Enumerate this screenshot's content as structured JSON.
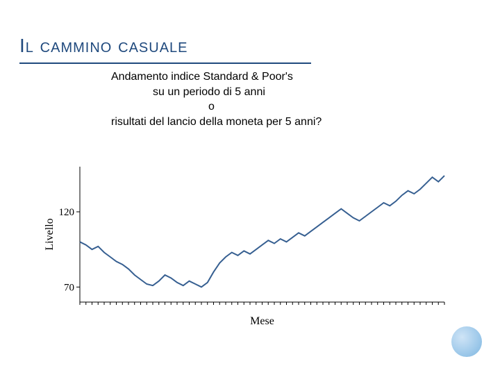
{
  "title": "Il cammino casuale",
  "subtitle": {
    "line1": "Andamento indice Standard & Poor's",
    "line2": "su un periodo di 5 anni",
    "line3": "o",
    "line4": "risultati del lancio della  moneta per 5 anni?"
  },
  "chart": {
    "type": "line",
    "xlabel": "Mese",
    "ylabel": "Livello",
    "xlim": [
      0,
      60
    ],
    "ylim": [
      60,
      150
    ],
    "yticks": [
      70,
      120
    ],
    "xtick_step": 1,
    "line_color": "#365f91",
    "axis_color": "#000000",
    "background_color": "#ffffff",
    "line_width": 2,
    "axis_label_fontsize": 16,
    "tick_label_fontsize": 15,
    "series": [
      {
        "x": 0,
        "y": 100
      },
      {
        "x": 1,
        "y": 98
      },
      {
        "x": 2,
        "y": 95
      },
      {
        "x": 3,
        "y": 97
      },
      {
        "x": 4,
        "y": 93
      },
      {
        "x": 5,
        "y": 90
      },
      {
        "x": 6,
        "y": 87
      },
      {
        "x": 7,
        "y": 85
      },
      {
        "x": 8,
        "y": 82
      },
      {
        "x": 9,
        "y": 78
      },
      {
        "x": 10,
        "y": 75
      },
      {
        "x": 11,
        "y": 72
      },
      {
        "x": 12,
        "y": 71
      },
      {
        "x": 13,
        "y": 74
      },
      {
        "x": 14,
        "y": 78
      },
      {
        "x": 15,
        "y": 76
      },
      {
        "x": 16,
        "y": 73
      },
      {
        "x": 17,
        "y": 71
      },
      {
        "x": 18,
        "y": 74
      },
      {
        "x": 19,
        "y": 72
      },
      {
        "x": 20,
        "y": 70
      },
      {
        "x": 21,
        "y": 73
      },
      {
        "x": 22,
        "y": 80
      },
      {
        "x": 23,
        "y": 86
      },
      {
        "x": 24,
        "y": 90
      },
      {
        "x": 25,
        "y": 93
      },
      {
        "x": 26,
        "y": 91
      },
      {
        "x": 27,
        "y": 94
      },
      {
        "x": 28,
        "y": 92
      },
      {
        "x": 29,
        "y": 95
      },
      {
        "x": 30,
        "y": 98
      },
      {
        "x": 31,
        "y": 101
      },
      {
        "x": 32,
        "y": 99
      },
      {
        "x": 33,
        "y": 102
      },
      {
        "x": 34,
        "y": 100
      },
      {
        "x": 35,
        "y": 103
      },
      {
        "x": 36,
        "y": 106
      },
      {
        "x": 37,
        "y": 104
      },
      {
        "x": 38,
        "y": 107
      },
      {
        "x": 39,
        "y": 110
      },
      {
        "x": 40,
        "y": 113
      },
      {
        "x": 41,
        "y": 116
      },
      {
        "x": 42,
        "y": 119
      },
      {
        "x": 43,
        "y": 122
      },
      {
        "x": 44,
        "y": 119
      },
      {
        "x": 45,
        "y": 116
      },
      {
        "x": 46,
        "y": 114
      },
      {
        "x": 47,
        "y": 117
      },
      {
        "x": 48,
        "y": 120
      },
      {
        "x": 49,
        "y": 123
      },
      {
        "x": 50,
        "y": 126
      },
      {
        "x": 51,
        "y": 124
      },
      {
        "x": 52,
        "y": 127
      },
      {
        "x": 53,
        "y": 131
      },
      {
        "x": 54,
        "y": 134
      },
      {
        "x": 55,
        "y": 132
      },
      {
        "x": 56,
        "y": 135
      },
      {
        "x": 57,
        "y": 139
      },
      {
        "x": 58,
        "y": 143
      },
      {
        "x": 59,
        "y": 140
      },
      {
        "x": 60,
        "y": 144
      }
    ]
  },
  "decoration": {
    "circle_gradient": [
      "#cfe4f6",
      "#9ec9ea",
      "#7eb6e0"
    ]
  }
}
